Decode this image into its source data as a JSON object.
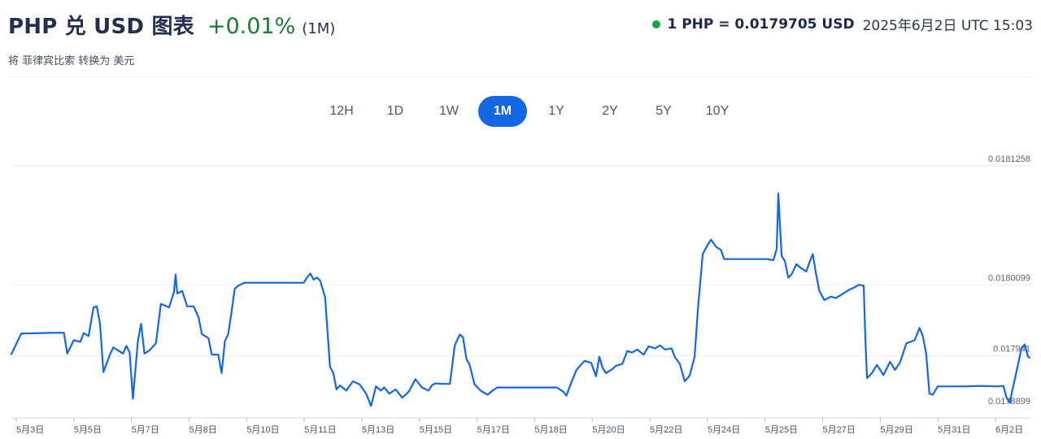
{
  "header": {
    "title": "PHP 兑 USD 图表",
    "change": "+0.01%",
    "period": "(1M)",
    "subtitle": "将 菲律宾比索 转换为 美元"
  },
  "rate": {
    "text": "1 PHP = 0.0179705 USD",
    "timestamp": "2025年6月2日 UTC 15:03",
    "status_color": "#16a34a"
  },
  "ranges": {
    "items": [
      "12H",
      "1D",
      "1W",
      "1M",
      "1Y",
      "2Y",
      "5Y",
      "10Y"
    ],
    "active": "1M"
  },
  "chart_data": {
    "type": "line",
    "line_color": "#1467e2",
    "y_ticks": [
      0.0181258,
      0.0180099,
      0.017941,
      0.0178899
    ],
    "y_tick_labels": [
      "0.0181258",
      "0.0180099",
      "0.017941",
      "0.0178899"
    ],
    "ylim": [
      0.0178899,
      0.0181258
    ],
    "x_tick_labels": [
      "5月3日",
      "5月5日",
      "5月7日",
      "5月8日",
      "5月10日",
      "5月11日",
      "5月13日",
      "5月15日",
      "5月17日",
      "5月18日",
      "5月20日",
      "5月22日",
      "5月24日",
      "5月25日",
      "5月27日",
      "5月29日",
      "5月31日",
      "6月2日"
    ],
    "grid": true,
    "series": [
      {
        "points": [
          [
            0,
            0.0179425
          ],
          [
            0.3,
            0.0179625
          ],
          [
            1.2,
            0.0179632
          ],
          [
            1.6,
            0.0179632
          ],
          [
            1.7,
            0.017943
          ],
          [
            1.9,
            0.017956
          ],
          [
            2.1,
            0.0179545
          ],
          [
            2.2,
            0.017963
          ],
          [
            2.35,
            0.01796
          ],
          [
            2.5,
            0.017988
          ],
          [
            2.6,
            0.017989
          ],
          [
            2.7,
            0.017972
          ],
          [
            2.8,
            0.017925
          ],
          [
            3.0,
            0.017942
          ],
          [
            3.1,
            0.017949
          ],
          [
            3.4,
            0.017943
          ],
          [
            3.5,
            0.0179505
          ],
          [
            3.6,
            0.017944
          ],
          [
            3.7,
            0.017899
          ],
          [
            3.85,
            0.017955
          ],
          [
            3.95,
            0.017972
          ],
          [
            4.05,
            0.017943
          ],
          [
            4.2,
            0.017946
          ],
          [
            4.4,
            0.017953
          ],
          [
            4.55,
            0.0179915
          ],
          [
            4.8,
            0.017988
          ],
          [
            4.95,
            0.018003
          ],
          [
            5.0,
            0.01802
          ],
          [
            5.05,
            0.0180015
          ],
          [
            5.2,
            0.018004
          ],
          [
            5.35,
            0.017989
          ],
          [
            5.55,
            0.017989
          ],
          [
            5.7,
            0.017978
          ],
          [
            5.8,
            0.017962
          ],
          [
            6.0,
            0.017958
          ],
          [
            6.1,
            0.017942
          ],
          [
            6.3,
            0.017942
          ],
          [
            6.4,
            0.017924
          ],
          [
            6.5,
            0.017955
          ],
          [
            6.6,
            0.017962
          ],
          [
            6.7,
            0.017983
          ],
          [
            6.8,
            0.018006
          ],
          [
            6.9,
            0.018009
          ],
          [
            7.1,
            0.018012
          ],
          [
            7.3,
            0.018012
          ],
          [
            7.6,
            0.018012
          ],
          [
            8.0,
            0.018012
          ],
          [
            8.5,
            0.018012
          ],
          [
            8.9,
            0.018012
          ],
          [
            9.0,
            0.018017
          ],
          [
            9.1,
            0.018021
          ],
          [
            9.2,
            0.018015
          ],
          [
            9.3,
            0.018017
          ],
          [
            9.4,
            0.018014
          ],
          [
            9.55,
            0.017998
          ],
          [
            9.7,
            0.01793
          ],
          [
            9.8,
            0.017924
          ],
          [
            9.9,
            0.017908
          ],
          [
            10.0,
            0.017912
          ],
          [
            10.2,
            0.017907
          ],
          [
            10.4,
            0.017916
          ],
          [
            10.6,
            0.017913
          ],
          [
            10.8,
            0.017904
          ],
          [
            10.95,
            0.017892
          ],
          [
            11.1,
            0.017911
          ],
          [
            11.25,
            0.017907
          ],
          [
            11.35,
            0.01791
          ],
          [
            11.5,
            0.017904
          ],
          [
            11.7,
            0.017908
          ],
          [
            11.9,
            0.0179
          ],
          [
            12.1,
            0.017906
          ],
          [
            12.3,
            0.017918
          ],
          [
            12.5,
            0.01791
          ],
          [
            12.7,
            0.017907
          ],
          [
            12.8,
            0.017912
          ],
          [
            12.9,
            0.017914
          ],
          [
            13.1,
            0.0179135
          ],
          [
            13.35,
            0.0179135
          ],
          [
            13.5,
            0.017951
          ],
          [
            13.65,
            0.0179615
          ],
          [
            13.75,
            0.017959
          ],
          [
            13.85,
            0.017938
          ],
          [
            13.95,
            0.017932
          ],
          [
            14.1,
            0.017913
          ],
          [
            14.3,
            0.0179065
          ],
          [
            14.5,
            0.017903
          ],
          [
            14.65,
            0.017907
          ],
          [
            14.8,
            0.01791
          ],
          [
            15.0,
            0.01791
          ],
          [
            15.6,
            0.01791
          ],
          [
            16.2,
            0.01791
          ],
          [
            16.6,
            0.01791
          ],
          [
            16.8,
            0.017906
          ],
          [
            16.9,
            0.017902
          ],
          [
            17.0,
            0.017911
          ],
          [
            17.2,
            0.017927
          ],
          [
            17.45,
            0.017936
          ],
          [
            17.65,
            0.017934
          ],
          [
            17.8,
            0.017921
          ],
          [
            17.9,
            0.01794
          ],
          [
            18.0,
            0.017929
          ],
          [
            18.1,
            0.017924
          ],
          [
            18.3,
            0.017928
          ],
          [
            18.4,
            0.017931
          ],
          [
            18.6,
            0.017933
          ],
          [
            18.75,
            0.0179455
          ],
          [
            18.9,
            0.017944
          ],
          [
            19.05,
            0.017947
          ],
          [
            19.25,
            0.017942
          ],
          [
            19.4,
            0.01795
          ],
          [
            19.6,
            0.017948
          ],
          [
            19.75,
            0.017951
          ],
          [
            19.9,
            0.017947
          ],
          [
            20.1,
            0.017948
          ],
          [
            20.2,
            0.0179395
          ],
          [
            20.35,
            0.017933
          ],
          [
            20.5,
            0.017916
          ],
          [
            20.65,
            0.0179215
          ],
          [
            20.8,
            0.01794
          ],
          [
            20.9,
            0.017986
          ],
          [
            21.05,
            0.01804
          ],
          [
            21.15,
            0.018046
          ],
          [
            21.2,
            0.018049
          ],
          [
            21.3,
            0.018054
          ],
          [
            21.45,
            0.018047
          ],
          [
            21.6,
            0.018044
          ],
          [
            21.7,
            0.018035
          ],
          [
            22.0,
            0.018035
          ],
          [
            22.5,
            0.018035
          ],
          [
            23.0,
            0.018035
          ],
          [
            23.2,
            0.018034
          ],
          [
            23.3,
            0.018045
          ],
          [
            23.35,
            0.018099
          ],
          [
            23.45,
            0.018038
          ],
          [
            23.55,
            0.018033
          ],
          [
            23.65,
            0.018017
          ],
          [
            23.75,
            0.01802
          ],
          [
            23.9,
            0.01803
          ],
          [
            24.05,
            0.018026
          ],
          [
            24.2,
            0.018023
          ],
          [
            24.3,
            0.018032
          ],
          [
            24.4,
            0.01804
          ],
          [
            24.5,
            0.01802
          ],
          [
            24.6,
            0.018004
          ],
          [
            24.75,
            0.017995
          ],
          [
            24.95,
            0.0179985
          ],
          [
            25.1,
            0.017997
          ],
          [
            25.3,
            0.018001
          ],
          [
            25.5,
            0.018005
          ],
          [
            25.7,
            0.018008
          ],
          [
            25.8,
            0.01801
          ],
          [
            25.95,
            0.018009
          ],
          [
            26.0,
            0.017956
          ],
          [
            26.05,
            0.017919
          ],
          [
            26.2,
            0.017924
          ],
          [
            26.35,
            0.017932
          ],
          [
            26.55,
            0.017922
          ],
          [
            26.75,
            0.017935
          ],
          [
            26.9,
            0.017927
          ],
          [
            27.05,
            0.017934
          ],
          [
            27.25,
            0.017953
          ],
          [
            27.5,
            0.017956
          ],
          [
            27.65,
            0.017968
          ],
          [
            27.75,
            0.01796
          ],
          [
            27.85,
            0.017943
          ],
          [
            27.95,
            0.017904
          ],
          [
            28.05,
            0.017903
          ],
          [
            28.2,
            0.017911
          ],
          [
            28.5,
            0.017911
          ],
          [
            29.0,
            0.017911
          ],
          [
            29.5,
            0.0179115
          ],
          [
            30.0,
            0.017911
          ],
          [
            30.2,
            0.0179115
          ],
          [
            30.3,
            0.0179
          ],
          [
            30.4,
            0.017895
          ],
          [
            30.45,
            0.017904
          ],
          [
            30.55,
            0.017918
          ],
          [
            30.65,
            0.017933
          ],
          [
            30.75,
            0.017948
          ],
          [
            30.85,
            0.017952
          ],
          [
            30.95,
            0.01794
          ],
          [
            31.0,
            0.017939
          ]
        ]
      }
    ]
  }
}
